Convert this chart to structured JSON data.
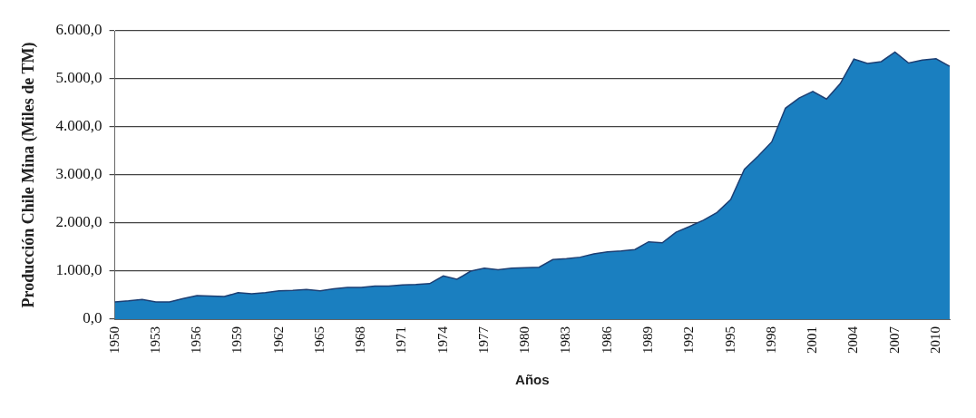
{
  "chart_data": {
    "type": "area",
    "ylabel": "Producción Chile Mina (Miles de TM)",
    "xlabel": "Años",
    "categories": [
      "1950",
      null,
      null,
      "1953",
      null,
      null,
      "1956",
      null,
      null,
      "1959",
      null,
      null,
      "1962",
      null,
      null,
      "1965",
      null,
      null,
      "1968",
      null,
      null,
      "1971",
      null,
      null,
      "1974",
      null,
      null,
      "1977",
      null,
      null,
      "1980",
      null,
      null,
      "1983",
      null,
      null,
      "1986",
      null,
      null,
      "1989",
      null,
      null,
      "1992",
      null,
      null,
      "1995",
      null,
      null,
      "1998",
      null,
      null,
      "2001",
      null,
      null,
      "2004",
      null,
      null,
      "2007",
      null,
      null,
      "2010",
      null
    ],
    "series": [
      {
        "color": "#1a7fc0",
        "values": [
          360,
          380,
          410,
          360,
          360,
          430,
          490,
          480,
          470,
          550,
          530,
          550,
          590,
          600,
          620,
          590,
          630,
          660,
          660,
          690,
          690,
          710,
          720,
          740,
          900,
          830,
          1000,
          1060,
          1030,
          1060,
          1070,
          1080,
          1240,
          1260,
          1290,
          1360,
          1400,
          1420,
          1450,
          1610,
          1590,
          1810,
          1930,
          2060,
          2220,
          2490,
          3120,
          3390,
          3690,
          4390,
          4600,
          4740,
          4580,
          4900,
          5410,
          5320,
          5360,
          5560,
          5330,
          5390,
          5420,
          5260
        ]
      }
    ],
    "ylim": [
      0,
      6000
    ],
    "yticks": [
      {
        "value": 0,
        "label": "0,0"
      },
      {
        "value": 1000,
        "label": "1.000,0"
      },
      {
        "value": 2000,
        "label": "2.000,0"
      },
      {
        "value": 3000,
        "label": "3.000,0"
      },
      {
        "value": 4000,
        "label": "4.000,0"
      },
      {
        "value": 5000,
        "label": "5.000,0"
      },
      {
        "value": 6000,
        "label": "6.000,0"
      }
    ],
    "grid": "y",
    "legend": false
  }
}
